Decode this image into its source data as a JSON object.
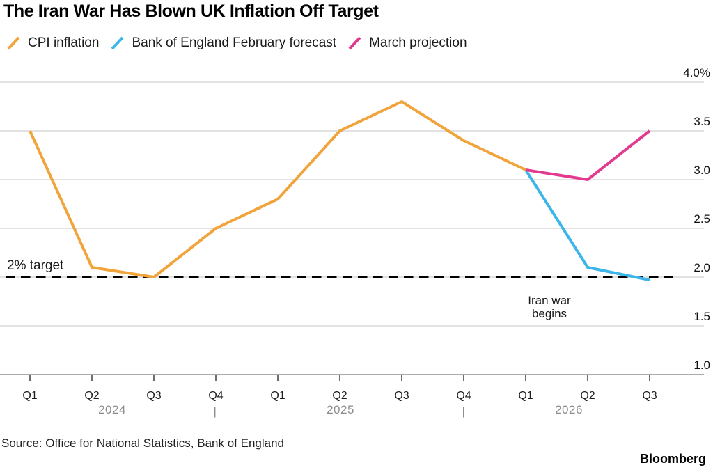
{
  "header": {
    "title": "The Iran War Has Blown UK Inflation Off Target"
  },
  "legend": [
    {
      "label": "CPI inflation",
      "color": "#F2A43C"
    },
    {
      "label": "Bank of England February forecast",
      "color": "#3CB6E8"
    },
    {
      "label": "March projection",
      "color": "#E23A8F"
    }
  ],
  "chart_data": {
    "type": "line",
    "x_categories": [
      "Q1",
      "Q2",
      "Q3",
      "Q4",
      "Q1",
      "Q2",
      "Q3",
      "Q4",
      "Q1",
      "Q2",
      "Q3"
    ],
    "x_years": [
      "2024",
      "2025",
      "2026"
    ],
    "year_separator": "|",
    "y_ticks": [
      {
        "value": 4.0,
        "label": "4.0%"
      },
      {
        "value": 3.5,
        "label": "3.5"
      },
      {
        "value": 3.0,
        "label": "3.0"
      },
      {
        "value": 2.5,
        "label": "2.5"
      },
      {
        "value": 2.0,
        "label": "2.0"
      },
      {
        "value": 1.5,
        "label": "1.5"
      },
      {
        "value": 1.0,
        "label": "1.0"
      }
    ],
    "ylim": [
      1.0,
      4.0
    ],
    "grid": "horizontal",
    "legend_position": "top",
    "series": [
      {
        "name": "CPI inflation",
        "color": "#F2A43C",
        "start_index": 0,
        "values": [
          3.5,
          2.1,
          2.0,
          2.5,
          2.8,
          3.5,
          3.8,
          3.4,
          3.1
        ]
      },
      {
        "name": "Bank of England February forecast",
        "color": "#3CB6E8",
        "start_index": 8,
        "values": [
          3.1,
          2.1,
          1.97
        ]
      },
      {
        "name": "March projection",
        "color": "#E23A8F",
        "start_index": 8,
        "values": [
          3.1,
          3.0,
          3.5
        ]
      }
    ],
    "target_line": {
      "value": 2.0,
      "label": "2% target",
      "style": "dashed",
      "color": "#000000"
    },
    "annotation": {
      "lines": [
        "Iran war",
        "begins"
      ],
      "anchor_category_index": 8
    }
  },
  "footer": {
    "source": "Source: Office for National Statistics, Bank of England",
    "brand": "Bloomberg"
  }
}
